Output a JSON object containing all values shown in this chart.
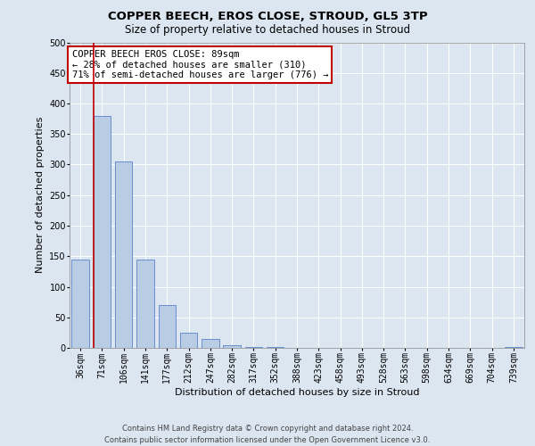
{
  "title": "COPPER BEECH, EROS CLOSE, STROUD, GL5 3TP",
  "subtitle": "Size of property relative to detached houses in Stroud",
  "xlabel": "Distribution of detached houses by size in Stroud",
  "ylabel": "Number of detached properties",
  "categories": [
    "36sqm",
    "71sqm",
    "106sqm",
    "141sqm",
    "177sqm",
    "212sqm",
    "247sqm",
    "282sqm",
    "317sqm",
    "352sqm",
    "388sqm",
    "423sqm",
    "458sqm",
    "493sqm",
    "528sqm",
    "563sqm",
    "598sqm",
    "634sqm",
    "669sqm",
    "704sqm",
    "739sqm"
  ],
  "bar_heights": [
    145,
    380,
    305,
    145,
    70,
    25,
    15,
    5,
    2,
    1,
    0,
    0,
    0,
    0,
    0,
    0,
    0,
    0,
    0,
    0,
    2
  ],
  "bar_color": "#b8cce4",
  "bar_edge_color": "#4472c4",
  "background_color": "#dce6f1",
  "plot_bg_color": "#dce6f1",
  "ylim": [
    0,
    500
  ],
  "yticks": [
    0,
    50,
    100,
    150,
    200,
    250,
    300,
    350,
    400,
    450,
    500
  ],
  "vline_x_index": 1,
  "vline_color": "#c00000",
  "annotation_text": "COPPER BEECH EROS CLOSE: 89sqm\n← 28% of detached houses are smaller (310)\n71% of semi-detached houses are larger (776) →",
  "annotation_box_color": "#ffffff",
  "annotation_box_edge_color": "#c00000",
  "footer_text": "Contains HM Land Registry data © Crown copyright and database right 2024.\nContains public sector information licensed under the Open Government Licence v3.0.",
  "title_fontsize": 9.5,
  "subtitle_fontsize": 8.5,
  "xlabel_fontsize": 8,
  "ylabel_fontsize": 8,
  "tick_fontsize": 7,
  "annotation_fontsize": 7.5,
  "footer_fontsize": 6
}
